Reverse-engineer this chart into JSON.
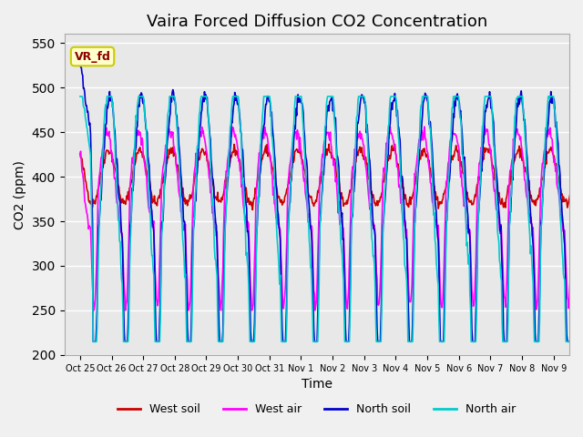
{
  "title": "Vaira Forced Diffusion CO2 Concentration",
  "xlabel": "Time",
  "ylabel": "CO2 (ppm)",
  "ylim": [
    200,
    560
  ],
  "yticks": [
    200,
    250,
    300,
    350,
    400,
    450,
    500,
    550
  ],
  "legend_label": "VR_fd",
  "series_labels": [
    "West soil",
    "West air",
    "North soil",
    "North air"
  ],
  "series_colors": [
    "#cc0000",
    "#ff00ff",
    "#0000cc",
    "#00cccc"
  ],
  "xtick_labels": [
    "Oct 25",
    "Oct 26",
    "Oct 27",
    "Oct 28",
    "Oct 29",
    "Oct 30",
    "Oct 31",
    "Nov 1",
    "Nov 2",
    "Nov 3",
    "Nov 4",
    "Nov 5",
    "Nov 6",
    "Nov 7",
    "Nov 8",
    "Nov 9"
  ],
  "plot_bg_color": "#e8e8e8",
  "fig_bg_color": "#f0f0f0",
  "grid_color": "#ffffff",
  "title_fontsize": 13
}
